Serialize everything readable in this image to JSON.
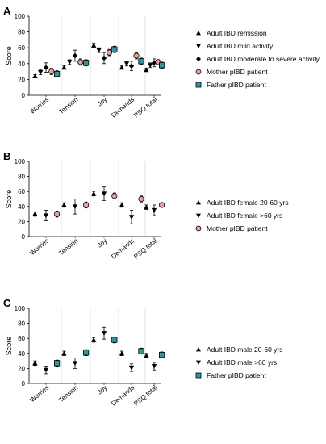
{
  "chart_data": [
    {
      "type": "scatter",
      "panel_label": "A",
      "ylabel": "Score",
      "ylim": [
        0,
        100
      ],
      "yticks": [
        0,
        20,
        40,
        60,
        80,
        100
      ],
      "categories": [
        "Worries",
        "Tension",
        "Joy",
        "Demands",
        "PSQ total"
      ],
      "legend_position": "right",
      "series": [
        {
          "name": "Adult IBD remission",
          "marker": "triangle-up",
          "color": "#000000",
          "values": [
            24,
            35,
            63,
            35,
            32
          ],
          "err": [
            2,
            2,
            3,
            2,
            2
          ]
        },
        {
          "name": "Adult IBD mild activity",
          "marker": "triangle-down",
          "color": "#000000",
          "values": [
            29,
            42,
            57,
            40,
            38
          ],
          "err": [
            3,
            3,
            3,
            3,
            3
          ]
        },
        {
          "name": "Adult IBD moderate to severe activity",
          "marker": "diamond",
          "color": "#000000",
          "values": [
            35,
            50,
            47,
            37,
            41
          ],
          "err": [
            6,
            7,
            7,
            6,
            5
          ]
        },
        {
          "name": "Mother pIBD patient",
          "marker": "circle",
          "color": "#e8a0a0",
          "values": [
            30,
            42,
            54,
            50,
            42
          ],
          "err": [
            4,
            4,
            4,
            4,
            3
          ]
        },
        {
          "name": "Father pIBD patient",
          "marker": "square",
          "color": "#2e9aa0",
          "values": [
            27,
            41,
            58,
            43,
            38
          ],
          "err": [
            4,
            4,
            4,
            4,
            4
          ]
        }
      ]
    },
    {
      "type": "scatter",
      "panel_label": "B",
      "ylabel": "Score",
      "ylim": [
        0,
        100
      ],
      "yticks": [
        0,
        20,
        40,
        60,
        80,
        100
      ],
      "categories": [
        "Worries",
        "Tension",
        "Joy",
        "Demands",
        "PSQ total"
      ],
      "legend_position": "right",
      "series": [
        {
          "name": "Adult IBD female 20-60 yrs",
          "marker": "triangle-up",
          "color": "#000000",
          "values": [
            30,
            42,
            57,
            42,
            39
          ],
          "err": [
            3,
            3,
            3,
            3,
            3
          ]
        },
        {
          "name": "Adult IBD female >60 yrs",
          "marker": "triangle-down",
          "color": "#000000",
          "values": [
            28,
            40,
            57,
            26,
            35
          ],
          "err": [
            7,
            10,
            9,
            9,
            7
          ]
        },
        {
          "name": "Mother pIBD patient",
          "marker": "circle",
          "color": "#e8a0a0",
          "values": [
            30,
            42,
            54,
            50,
            42
          ],
          "err": [
            4,
            4,
            4,
            4,
            3
          ]
        }
      ]
    },
    {
      "type": "scatter",
      "panel_label": "C",
      "ylabel": "Score",
      "ylim": [
        0,
        100
      ],
      "yticks": [
        0,
        20,
        40,
        60,
        80,
        100
      ],
      "categories": [
        "Worries",
        "Tension",
        "Joy",
        "Demands",
        "PSQ total"
      ],
      "legend_position": "right",
      "series": [
        {
          "name": "Adult IBD male 20-60 yrs",
          "marker": "triangle-up",
          "color": "#000000",
          "values": [
            27,
            40,
            58,
            40,
            37
          ],
          "err": [
            3,
            3,
            3,
            3,
            3
          ]
        },
        {
          "name": "Adult IBD male >60 yrs",
          "marker": "triangle-down",
          "color": "#000000",
          "values": [
            18,
            27,
            67,
            21,
            23
          ],
          "err": [
            5,
            7,
            8,
            5,
            5
          ]
        },
        {
          "name": "Father pIBD patient",
          "marker": "square",
          "color": "#2e9aa0",
          "values": [
            27,
            41,
            58,
            43,
            38
          ],
          "err": [
            4,
            4,
            4,
            4,
            4
          ]
        }
      ]
    }
  ]
}
